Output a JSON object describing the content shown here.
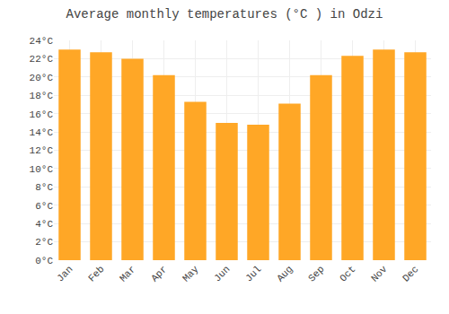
{
  "chart_data": {
    "type": "bar",
    "title": "Average monthly temperatures (°C ) in Odzi",
    "categories": [
      "Jan",
      "Feb",
      "Mar",
      "Apr",
      "May",
      "Jun",
      "Jul",
      "Aug",
      "Sep",
      "Oct",
      "Nov",
      "Dec"
    ],
    "values": [
      23.0,
      22.7,
      22.0,
      20.2,
      17.3,
      15.0,
      14.8,
      17.1,
      20.2,
      22.3,
      23.0,
      22.7
    ],
    "color": "#FFA726",
    "ylim": [
      0,
      24
    ],
    "yticks": [
      {
        "value": 0,
        "label": "0°C"
      },
      {
        "value": 2,
        "label": "2°C"
      },
      {
        "value": 4,
        "label": "4°C"
      },
      {
        "value": 6,
        "label": "6°C"
      },
      {
        "value": 8,
        "label": "8°C"
      },
      {
        "value": 10,
        "label": "10°C"
      },
      {
        "value": 12,
        "label": "12°C"
      },
      {
        "value": 14,
        "label": "14°C"
      },
      {
        "value": 16,
        "label": "16°C"
      },
      {
        "value": 18,
        "label": "18°C"
      },
      {
        "value": 20,
        "label": "20°C"
      },
      {
        "value": 22,
        "label": "22°C"
      },
      {
        "value": 24,
        "label": "24°C"
      }
    ],
    "grid": true
  }
}
